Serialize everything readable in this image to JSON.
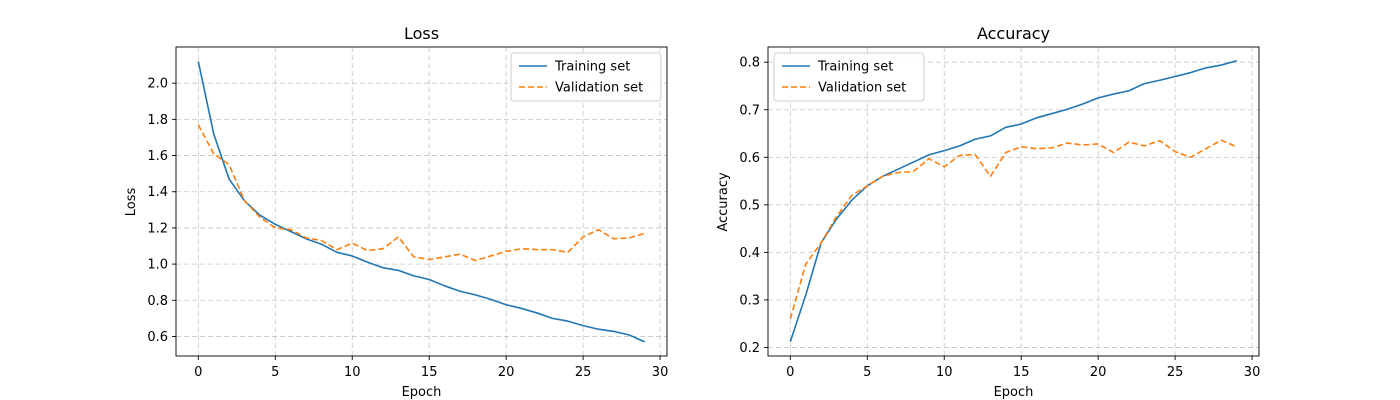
{
  "chart_data": [
    {
      "type": "line",
      "title": "Loss",
      "xlabel": "Epoch",
      "ylabel": "Loss",
      "xlim": [
        -1.45,
        30.45
      ],
      "ylim": [
        0.492,
        2.2
      ],
      "xticks": [
        0,
        5,
        10,
        15,
        20,
        25,
        30
      ],
      "yticks": [
        0.6,
        0.8,
        1.0,
        1.2,
        1.4,
        1.6,
        1.8,
        2.0
      ],
      "grid": true,
      "legend_position": "upper right",
      "x": [
        0,
        1,
        2,
        3,
        4,
        5,
        6,
        7,
        8,
        9,
        10,
        11,
        12,
        13,
        14,
        15,
        16,
        17,
        18,
        19,
        20,
        21,
        22,
        23,
        24,
        25,
        26,
        27,
        28,
        29
      ],
      "series": [
        {
          "name": "Training set",
          "color": "#1f77b4",
          "style": "solid",
          "values": [
            2.12,
            1.72,
            1.47,
            1.35,
            1.27,
            1.22,
            1.18,
            1.14,
            1.11,
            1.065,
            1.045,
            1.01,
            0.98,
            0.965,
            0.935,
            0.915,
            0.88,
            0.85,
            0.83,
            0.805,
            0.775,
            0.755,
            0.73,
            0.7,
            0.685,
            0.66,
            0.64,
            0.628,
            0.608,
            0.57
          ]
        },
        {
          "name": "Validation set",
          "color": "#ff7f0e",
          "style": "dashed",
          "values": [
            1.77,
            1.61,
            1.55,
            1.35,
            1.26,
            1.2,
            1.19,
            1.145,
            1.13,
            1.08,
            1.115,
            1.075,
            1.085,
            1.15,
            1.04,
            1.025,
            1.04,
            1.055,
            1.02,
            1.045,
            1.07,
            1.085,
            1.08,
            1.08,
            1.065,
            1.15,
            1.19,
            1.14,
            1.145,
            1.17
          ]
        }
      ]
    },
    {
      "type": "line",
      "title": "Accuracy",
      "xlabel": "Epoch",
      "ylabel": "Accuracy",
      "xlim": [
        -1.45,
        30.45
      ],
      "ylim": [
        0.182,
        0.832
      ],
      "xticks": [
        0,
        5,
        10,
        15,
        20,
        25,
        30
      ],
      "yticks": [
        0.2,
        0.3,
        0.4,
        0.5,
        0.6,
        0.7,
        0.8
      ],
      "grid": true,
      "legend_position": "upper left",
      "x": [
        0,
        1,
        2,
        3,
        4,
        5,
        6,
        7,
        8,
        9,
        10,
        11,
        12,
        13,
        14,
        15,
        16,
        17,
        18,
        19,
        20,
        21,
        22,
        23,
        24,
        25,
        26,
        27,
        28,
        29
      ],
      "series": [
        {
          "name": "Training set",
          "color": "#1f77b4",
          "style": "solid",
          "values": [
            0.212,
            0.31,
            0.42,
            0.47,
            0.51,
            0.54,
            0.56,
            0.575,
            0.59,
            0.605,
            0.614,
            0.624,
            0.638,
            0.645,
            0.663,
            0.67,
            0.683,
            0.692,
            0.701,
            0.712,
            0.725,
            0.733,
            0.74,
            0.755,
            0.762,
            0.77,
            0.778,
            0.788,
            0.794,
            0.803
          ]
        },
        {
          "name": "Validation set",
          "color": "#ff7f0e",
          "style": "dashed",
          "values": [
            0.26,
            0.375,
            0.42,
            0.475,
            0.52,
            0.54,
            0.56,
            0.568,
            0.57,
            0.597,
            0.58,
            0.604,
            0.606,
            0.56,
            0.61,
            0.622,
            0.618,
            0.62,
            0.63,
            0.626,
            0.628,
            0.61,
            0.632,
            0.624,
            0.635,
            0.612,
            0.6,
            0.618,
            0.636,
            0.622
          ]
        }
      ]
    }
  ]
}
